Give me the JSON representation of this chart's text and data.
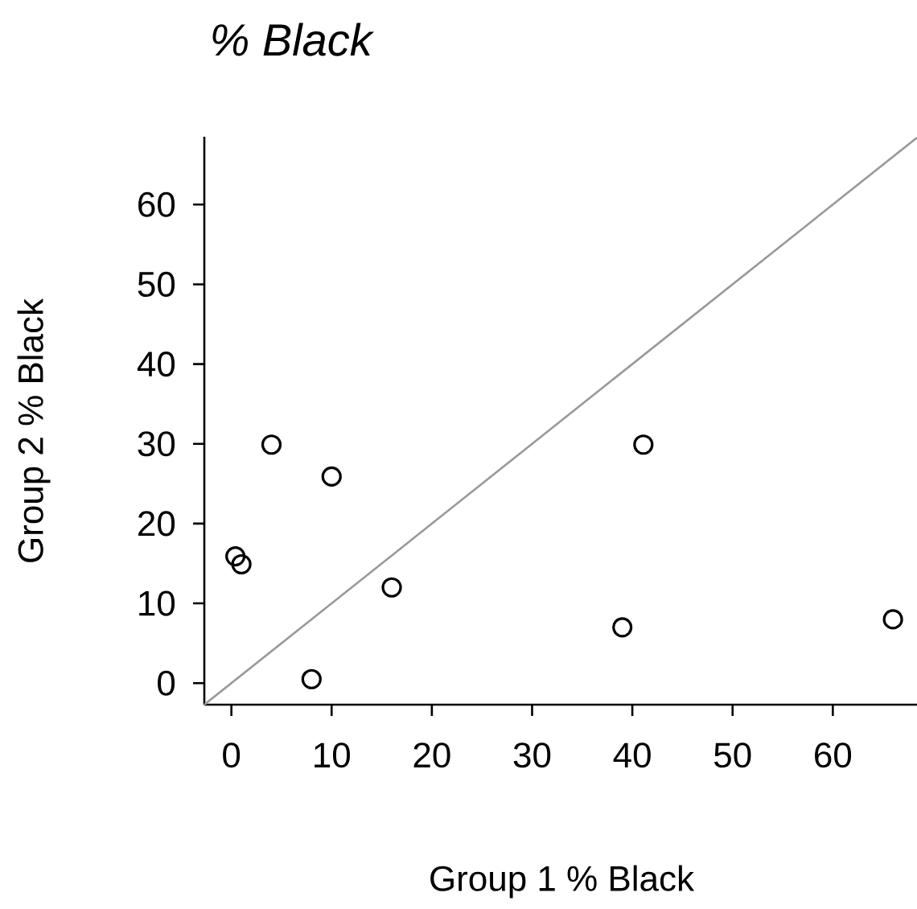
{
  "chart_data": {
    "type": "scatter",
    "title": "*% Black*",
    "xlabel": "Group 1 % Black",
    "ylabel": "Group 2 % Black",
    "xlim": [
      -2.7,
      68.4
    ],
    "ylim": [
      -2.7,
      68.5
    ],
    "xticks": [
      0,
      10,
      20,
      30,
      40,
      50,
      60
    ],
    "yticks": [
      0,
      10,
      20,
      30,
      40,
      50,
      60
    ],
    "grid": false,
    "series": [
      {
        "color": "#000000",
        "marker": "circle",
        "x": [
          0.4,
          1.0,
          4.0,
          10.0,
          16.0,
          8.0,
          41.1,
          39.0,
          66.0
        ],
        "values": [
          15.9,
          14.9,
          29.9,
          25.9,
          12.0,
          0.5,
          29.9,
          7.0,
          8.0
        ]
      },
      {
        "type": "line",
        "color": "#999999",
        "marker": "none",
        "x": [
          -2.7,
          68.4
        ],
        "values": [
          -2.7,
          68.4
        ]
      }
    ]
  }
}
